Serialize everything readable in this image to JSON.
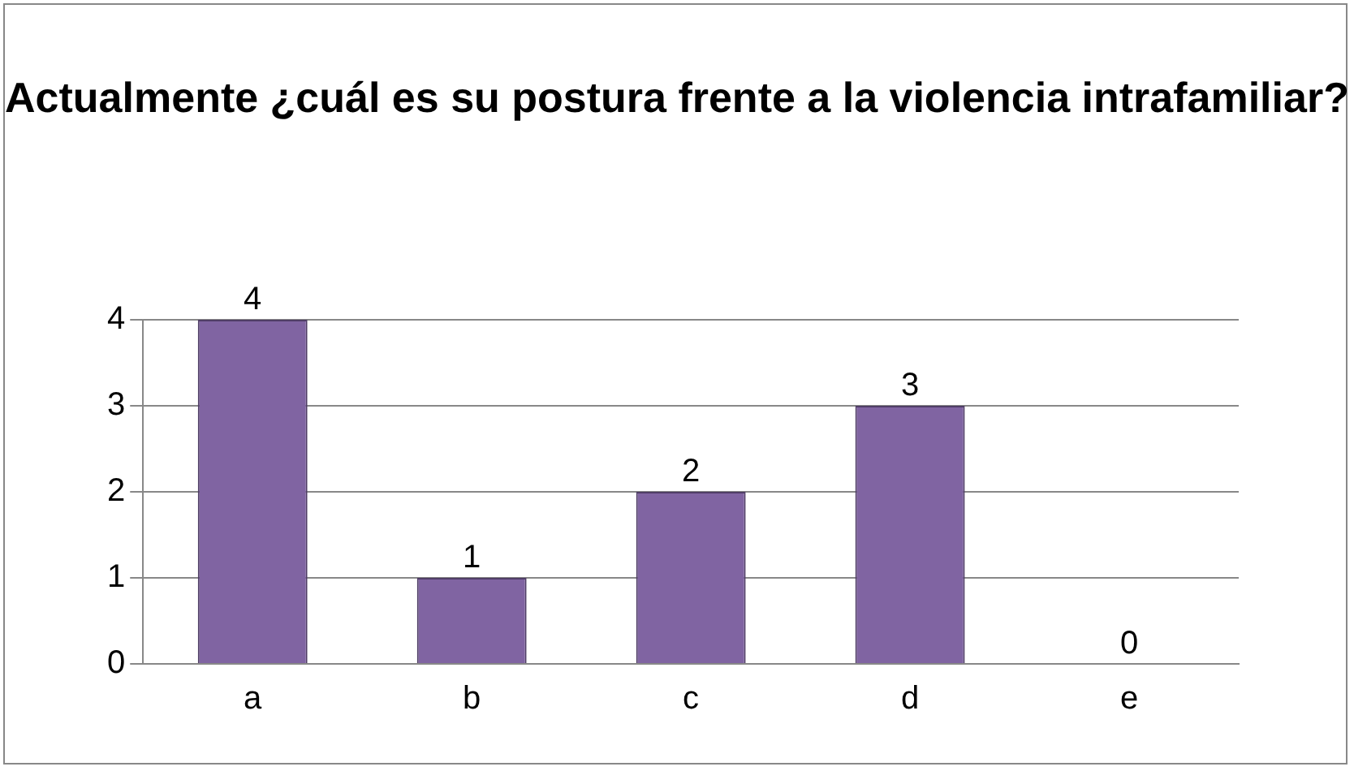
{
  "chart_data": {
    "type": "bar",
    "title": "Actualmente ¿cuál es su postura frente a la violencia intrafamiliar?",
    "categories": [
      "a",
      "b",
      "c",
      "d",
      "e"
    ],
    "values": [
      4,
      1,
      2,
      3,
      0
    ],
    "color": "#8064a2",
    "ylim": [
      0,
      4
    ],
    "yticks": [
      0,
      1,
      2,
      3,
      4
    ],
    "grid": "y",
    "data_labels": true,
    "legend": false
  }
}
